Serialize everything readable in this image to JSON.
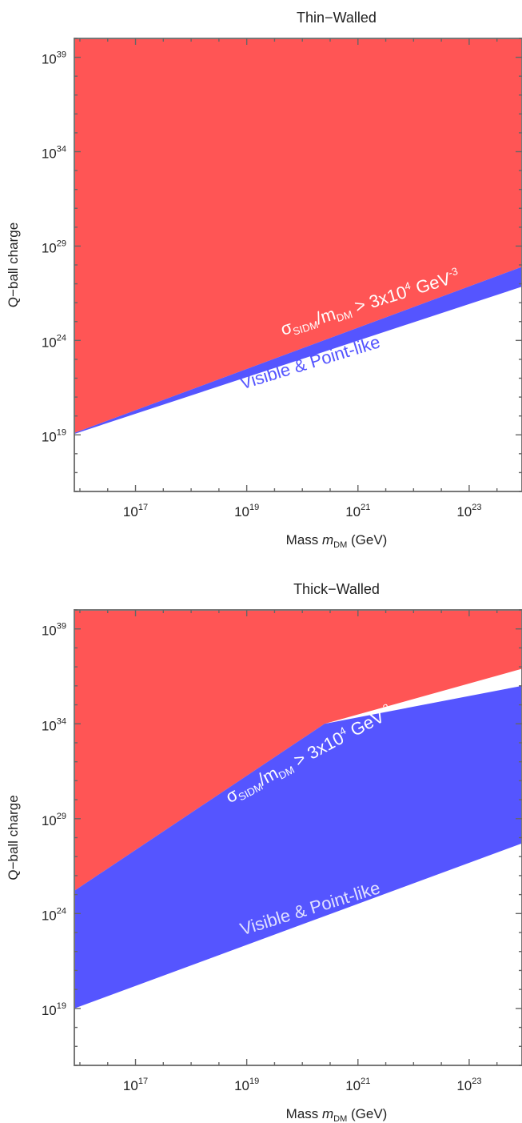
{
  "colors": {
    "excluded": "#ff5555",
    "visible": "#5555ff",
    "label_excluded": "#ffffff",
    "label_visible": "#e0e0ff"
  },
  "chart_data": [
    {
      "type": "area",
      "title": "Thin−Walled",
      "xlabel": {
        "base": "Mass ",
        "italic": "m",
        "sub": "DM",
        "suffix": " (GeV)"
      },
      "ylabel": "Q−ball charge",
      "x_scale": "log",
      "y_scale": "log",
      "xlim_log10": [
        15.9,
        23.95
      ],
      "ylim_log10": [
        16.0,
        40.0
      ],
      "x_ticks": [
        {
          "base": "10",
          "exp": "17",
          "value": 17
        },
        {
          "base": "10",
          "exp": "19",
          "value": 19
        },
        {
          "base": "10",
          "exp": "21",
          "value": 21
        },
        {
          "base": "10",
          "exp": "23",
          "value": 23
        }
      ],
      "y_ticks": [
        {
          "base": "10",
          "exp": "19",
          "value": 19
        },
        {
          "base": "10",
          "exp": "24",
          "value": 24
        },
        {
          "base": "10",
          "exp": "29",
          "value": 29
        },
        {
          "base": "10",
          "exp": "34",
          "value": 34
        },
        {
          "base": "10",
          "exp": "39",
          "value": 39
        }
      ],
      "regions": [
        {
          "name": "excluded",
          "label": {
            "sigma": "σ",
            "sub1": "SIDM",
            "mid": "/m",
            "sub2": "DM",
            "rest": " > 3x10",
            "sup1": "4",
            "tail": " GeV",
            "sup2": "-3"
          },
          "lower_boundary": [
            [
              15.9,
              19.1
            ],
            [
              23.95,
              27.9
            ]
          ]
        },
        {
          "name": "visible",
          "label": "Visible & Point-like",
          "upper_boundary": [
            [
              15.9,
              19.1
            ],
            [
              23.95,
              27.9
            ]
          ],
          "lower_boundary": [
            [
              15.9,
              19.05
            ],
            [
              23.95,
              26.85
            ]
          ]
        }
      ]
    },
    {
      "type": "area",
      "title": "Thick−Walled",
      "xlabel": {
        "base": "Mass ",
        "italic": "m",
        "sub": "DM",
        "suffix": " (GeV)"
      },
      "ylabel": "Q−ball charge",
      "x_scale": "log",
      "y_scale": "log",
      "xlim_log10": [
        15.9,
        23.95
      ],
      "ylim_log10": [
        16.0,
        40.0
      ],
      "x_ticks": [
        {
          "base": "10",
          "exp": "17",
          "value": 17
        },
        {
          "base": "10",
          "exp": "19",
          "value": 19
        },
        {
          "base": "10",
          "exp": "21",
          "value": 21
        },
        {
          "base": "10",
          "exp": "23",
          "value": 23
        }
      ],
      "y_ticks": [
        {
          "base": "10",
          "exp": "19",
          "value": 19
        },
        {
          "base": "10",
          "exp": "24",
          "value": 24
        },
        {
          "base": "10",
          "exp": "29",
          "value": 29
        },
        {
          "base": "10",
          "exp": "34",
          "value": 34
        },
        {
          "base": "10",
          "exp": "39",
          "value": 39
        }
      ],
      "regions": [
        {
          "name": "excluded",
          "label": {
            "sigma": "σ",
            "sub1": "SIDM",
            "mid": "/m",
            "sub2": "DM",
            "rest": " > 3x10",
            "sup1": "4",
            "tail": " GeV",
            "sup2": "-3"
          },
          "lower_boundary": [
            [
              15.9,
              25.2
            ],
            [
              20.4,
              34.0
            ],
            [
              23.95,
              36.9
            ]
          ]
        },
        {
          "name": "visible",
          "label": "Visible & Point-like",
          "upper_boundary": [
            [
              15.9,
              25.2
            ],
            [
              20.4,
              34.0
            ],
            [
              23.95,
              36.0
            ]
          ],
          "lower_boundary": [
            [
              15.9,
              19.0
            ],
            [
              23.95,
              27.7
            ]
          ]
        }
      ]
    }
  ]
}
